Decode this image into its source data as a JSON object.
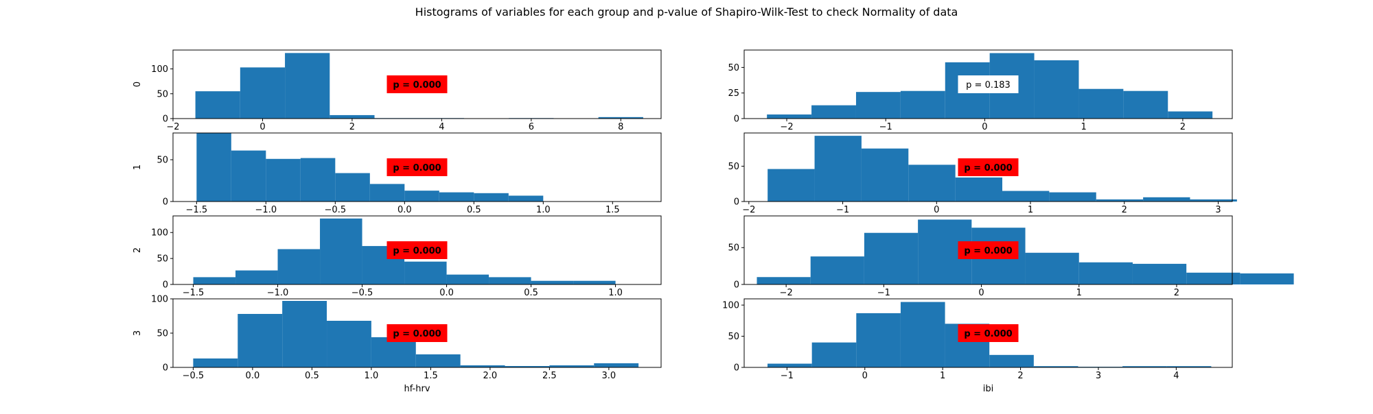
{
  "figure": {
    "title": "Histograms of variables for each group and p-value of Shapiro-Wilk-Test to check Normality of data"
  },
  "colors": {
    "bar": "#1f77b4",
    "pbox_significant": "#ff0000",
    "pbox_normal": "#ffffff",
    "axis": "#000000"
  },
  "chart_data": [
    {
      "type": "bar",
      "group": "0",
      "variable": "hf-hrv",
      "ylabel": "0",
      "xlabel": "",
      "bin_edges": [
        -1.5,
        -0.5,
        0.5,
        1.5,
        2.5,
        3.5,
        4.5,
        5.5,
        6.5,
        7.5,
        8.5
      ],
      "counts": [
        55,
        103,
        132,
        7,
        1,
        1,
        0,
        1,
        0,
        3
      ],
      "xticks": [
        -2,
        0,
        2,
        4,
        6,
        8
      ],
      "xtick_labels": [
        "−2",
        "0",
        "2",
        "4",
        "6",
        "8"
      ],
      "yticks": [
        0,
        50,
        100
      ],
      "xlim": [
        -2.0,
        8.9
      ],
      "ylim": [
        0,
        138
      ],
      "annotation": "p = 0.000",
      "significant": true
    },
    {
      "type": "bar",
      "group": "0",
      "variable": "ibi",
      "ylabel": "",
      "xlabel": "",
      "bin_edges": [
        -2.2,
        -1.75,
        -1.3,
        -0.85,
        -0.4,
        0.05,
        0.5,
        0.95,
        1.4,
        1.85,
        2.3
      ],
      "counts": [
        4,
        13,
        26,
        27,
        55,
        64,
        57,
        29,
        27,
        7
      ],
      "xticks": [
        -2,
        -1,
        0,
        1,
        2
      ],
      "xtick_labels": [
        "−2",
        "−1",
        "0",
        "1",
        "2"
      ],
      "yticks": [
        0,
        25,
        50
      ],
      "xlim": [
        -2.43,
        2.5
      ],
      "ylim": [
        0,
        67
      ],
      "annotation": "p = 0.183",
      "significant": false
    },
    {
      "type": "bar",
      "group": "1",
      "variable": "hf-hrv",
      "ylabel": "1",
      "xlabel": "",
      "bin_edges": [
        -1.5,
        -1.25,
        -1.0,
        -0.75,
        -0.5,
        -0.25,
        0.0,
        0.25,
        0.5,
        0.75,
        1.0
      ],
      "counts": [
        82,
        61,
        51,
        52,
        34,
        21,
        13,
        11,
        10,
        7
      ],
      "xticks": [
        -1.5,
        -1.0,
        -0.5,
        0.0,
        0.5,
        1.0,
        1.5
      ],
      "xtick_labels": [
        "−1.5",
        "−1.0",
        "−0.5",
        "0.0",
        "0.5",
        "1.0",
        "1.5"
      ],
      "yticks": [
        0,
        50
      ],
      "xlim": [
        -1.67,
        1.85
      ],
      "ylim": [
        0,
        82
      ],
      "annotation": "p = 0.000",
      "significant": true
    },
    {
      "type": "bar",
      "group": "1",
      "variable": "ibi",
      "ylabel": "",
      "xlabel": "",
      "bin_edges": [
        -1.8,
        -1.3,
        -0.8,
        -0.3,
        0.2,
        0.7,
        1.2,
        1.7,
        2.2,
        2.7,
        3.2
      ],
      "counts": [
        46,
        93,
        75,
        52,
        34,
        15,
        13,
        3,
        6,
        3
      ],
      "xticks": [
        -2,
        -1,
        0,
        1,
        2,
        3
      ],
      "xtick_labels": [
        "−2",
        "−1",
        "0",
        "1",
        "2",
        "3"
      ],
      "yticks": [
        0,
        50
      ],
      "xlim": [
        -2.05,
        3.15
      ],
      "ylim": [
        0,
        97
      ],
      "annotation": "p = 0.000",
      "significant": true
    },
    {
      "type": "bar",
      "group": "2",
      "variable": "hf-hrv",
      "ylabel": "2",
      "xlabel": "",
      "bin_edges": [
        -1.5,
        -1.25,
        -1.0,
        -0.75,
        -0.5,
        -0.25,
        0.0,
        0.25,
        0.5,
        0.75,
        1.0
      ],
      "counts": [
        14,
        27,
        68,
        127,
        74,
        44,
        19,
        14,
        7,
        7
      ],
      "xticks": [
        -1.5,
        -1.0,
        -0.5,
        0.0,
        0.5,
        1.0
      ],
      "xtick_labels": [
        "−1.5",
        "−1.0",
        "−0.5",
        "0.0",
        "0.5",
        "1.0"
      ],
      "yticks": [
        0,
        50,
        100
      ],
      "xlim": [
        -1.62,
        1.27
      ],
      "ylim": [
        0,
        132
      ],
      "annotation": "p = 0.000",
      "significant": true
    },
    {
      "type": "bar",
      "group": "2",
      "variable": "ibi",
      "ylabel": "",
      "xlabel": "",
      "bin_edges": [
        -2.3,
        -1.75,
        -1.2,
        -0.65,
        -0.1,
        0.45,
        1.0,
        1.55,
        2.1,
        2.65,
        3.2
      ],
      "counts": [
        10,
        38,
        70,
        88,
        77,
        43,
        30,
        28,
        16,
        15
      ],
      "xticks": [
        -2,
        -1,
        0,
        1,
        2
      ],
      "xtick_labels": [
        "−2",
        "−1",
        "0",
        "1",
        "2"
      ],
      "yticks": [
        0,
        50
      ],
      "xlim": [
        -2.43,
        2.57
      ],
      "ylim": [
        0,
        93
      ],
      "annotation": "p = 0.000",
      "significant": true
    },
    {
      "type": "bar",
      "group": "3",
      "variable": "hf-hrv",
      "ylabel": "3",
      "xlabel": "hf-hrv",
      "bin_edges": [
        -0.5,
        -0.125,
        0.25,
        0.625,
        1.0,
        1.375,
        1.75,
        2.125,
        2.5,
        2.875,
        3.25
      ],
      "counts": [
        13,
        78,
        97,
        68,
        44,
        19,
        3,
        2,
        3,
        6
      ],
      "xticks": [
        -0.5,
        0.0,
        0.5,
        1.0,
        1.5,
        2.0,
        2.5,
        3.0
      ],
      "xtick_labels": [
        "−0.5",
        "0.0",
        "0.5",
        "1.0",
        "1.5",
        "2.0",
        "2.5",
        "3.0"
      ],
      "yticks": [
        0,
        50,
        100
      ],
      "xlim": [
        -0.67,
        3.44
      ],
      "ylim": [
        0,
        100
      ],
      "annotation": "p = 0.000",
      "significant": true
    },
    {
      "type": "bar",
      "group": "3",
      "variable": "ibi",
      "ylabel": "",
      "xlabel": "ibi",
      "bin_edges": [
        -1.25,
        -0.68,
        -0.11,
        0.46,
        1.03,
        1.6,
        2.17,
        2.74,
        3.31,
        3.88,
        4.45
      ],
      "counts": [
        6,
        40,
        87,
        105,
        70,
        20,
        2,
        1,
        2,
        2
      ],
      "xticks": [
        -1,
        0,
        1,
        2,
        3,
        4
      ],
      "xtick_labels": [
        "−1",
        "0",
        "1",
        "2",
        "3",
        "4"
      ],
      "yticks": [
        0,
        50,
        100
      ],
      "xlim": [
        -1.55,
        4.72
      ],
      "ylim": [
        0,
        110
      ],
      "annotation": "p = 0.000",
      "significant": true
    }
  ]
}
